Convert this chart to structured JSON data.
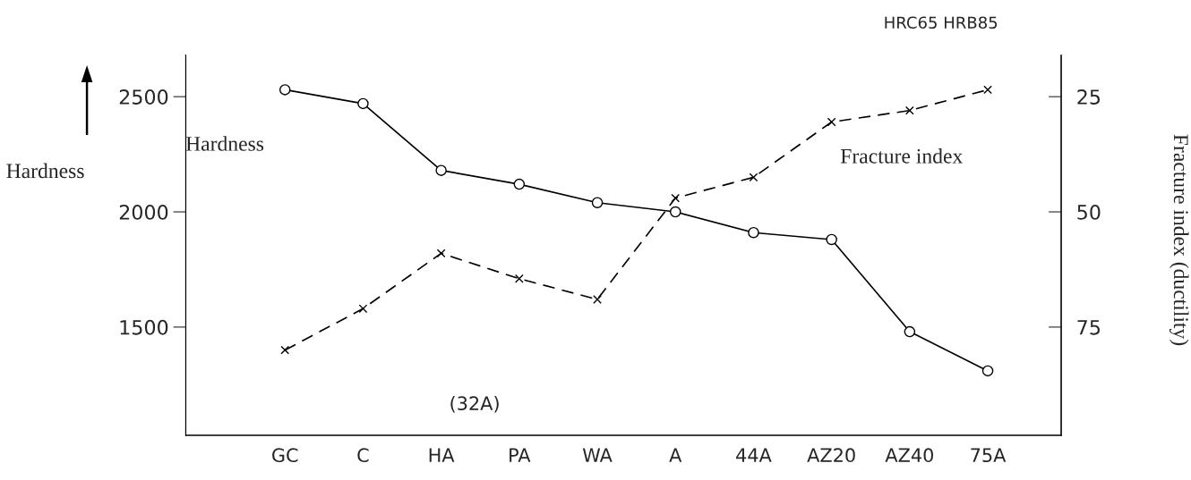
{
  "chart_data": {
    "type": "line",
    "categories": [
      "GC",
      "C",
      "HA",
      "PA",
      "WA",
      "A",
      "44A",
      "AZ20",
      "AZ40",
      "75A"
    ],
    "series": [
      {
        "name": "Hardness",
        "color": "#000000",
        "marker": "circle",
        "line_style": "solid",
        "values": [
          2530,
          2470,
          2180,
          2120,
          2040,
          2000,
          1910,
          1880,
          1480,
          1310
        ]
      },
      {
        "name": "Fracture index",
        "color": "#000000",
        "marker": "cross",
        "line_style": "dashed",
        "axis": "y2",
        "values": [
          80,
          71,
          59,
          64.5,
          69,
          47,
          42.5,
          30.5,
          28,
          23.5
        ]
      }
    ],
    "ylabel": "Hardness",
    "y2label": "Fracture index (ductility)",
    "ylim": [
      1030,
      2680
    ],
    "yticks": [
      1500,
      2000,
      2500
    ],
    "y2lim": [
      98.5,
      16
    ],
    "y2ticks": [
      25,
      50,
      75
    ],
    "annotations": [
      "HRC65 HRB85",
      "(32A)"
    ],
    "grid": false,
    "legend": false
  }
}
